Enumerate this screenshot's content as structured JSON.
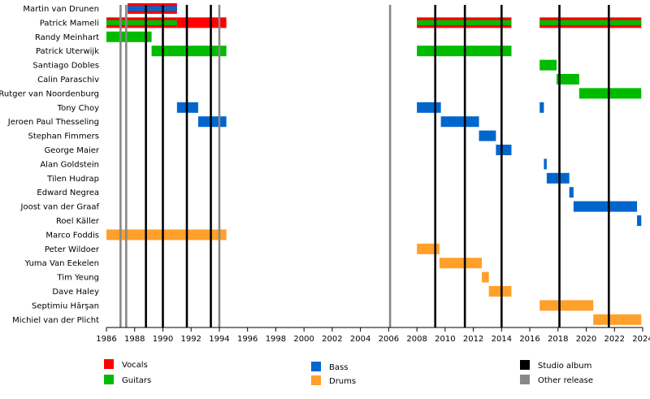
{
  "chart_data": {
    "type": "timeline",
    "title": "",
    "xlim": [
      1986,
      2024
    ],
    "x_ticks": [
      "1986",
      "1988",
      "1990",
      "1992",
      "1994",
      "1996",
      "1998",
      "2000",
      "2002",
      "2004",
      "2006",
      "2008",
      "2010",
      "2012",
      "2014",
      "2016",
      "2018",
      "2020",
      "2022",
      "2024"
    ],
    "grid": false,
    "legend_position": "bottom",
    "roles": [
      {
        "key": "vocals",
        "name": "Vocals",
        "color": "#ff0000"
      },
      {
        "key": "guitars",
        "name": "Guitars",
        "color": "#00bb00"
      },
      {
        "key": "bass",
        "name": "Bass",
        "color": "#0066cc"
      },
      {
        "key": "drums",
        "name": "Drums",
        "color": "#ffa02a"
      }
    ],
    "release_types": [
      {
        "key": "studio",
        "name": "Studio album",
        "color": "#000000"
      },
      {
        "key": "other",
        "name": "Other release",
        "color": "#888888"
      }
    ],
    "members": [
      {
        "name": "Martin van Drunen",
        "spans": [
          {
            "start": 1987.5,
            "end": 1991.0,
            "roles": [
              "vocals",
              "bass"
            ]
          }
        ]
      },
      {
        "name": "Patrick Mameli",
        "spans": [
          {
            "start": 1986.0,
            "end": 1991.0,
            "roles": [
              "vocals",
              "guitars"
            ]
          },
          {
            "start": 1991.0,
            "end": 1994.5,
            "roles": [
              "vocals"
            ]
          },
          {
            "start": 2008.0,
            "end": 2014.7,
            "roles": [
              "vocals",
              "guitars"
            ]
          },
          {
            "start": 2016.7,
            "end": 2023.9,
            "roles": [
              "vocals",
              "guitars"
            ]
          }
        ]
      },
      {
        "name": "Randy Meinhart",
        "spans": [
          {
            "start": 1986.0,
            "end": 1989.2,
            "roles": [
              "guitars"
            ]
          }
        ]
      },
      {
        "name": "Patrick Uterwijk",
        "spans": [
          {
            "start": 1989.2,
            "end": 1994.5,
            "roles": [
              "guitars"
            ]
          },
          {
            "start": 2008.0,
            "end": 2014.7,
            "roles": [
              "guitars"
            ]
          }
        ]
      },
      {
        "name": "Santiago Dobles",
        "spans": [
          {
            "start": 2016.7,
            "end": 2017.9,
            "roles": [
              "guitars"
            ]
          }
        ]
      },
      {
        "name": "Calin Paraschiv",
        "spans": [
          {
            "start": 2017.9,
            "end": 2019.5,
            "roles": [
              "guitars"
            ]
          }
        ]
      },
      {
        "name": "Rutger van Noordenburg",
        "spans": [
          {
            "start": 2019.5,
            "end": 2023.9,
            "roles": [
              "guitars"
            ]
          }
        ]
      },
      {
        "name": "Tony Choy",
        "spans": [
          {
            "start": 1991.0,
            "end": 1992.5,
            "roles": [
              "bass"
            ]
          },
          {
            "start": 2008.0,
            "end": 2009.7,
            "roles": [
              "bass"
            ]
          },
          {
            "start": 2016.7,
            "end": 2017.0,
            "roles": [
              "bass"
            ]
          }
        ]
      },
      {
        "name": "Jeroen Paul Thesseling",
        "spans": [
          {
            "start": 1992.5,
            "end": 1994.5,
            "roles": [
              "bass"
            ]
          },
          {
            "start": 2009.7,
            "end": 2012.4,
            "roles": [
              "bass"
            ]
          }
        ]
      },
      {
        "name": "Stephan Fimmers",
        "spans": [
          {
            "start": 2012.4,
            "end": 2013.6,
            "roles": [
              "bass"
            ]
          }
        ]
      },
      {
        "name": "George Maier",
        "spans": [
          {
            "start": 2013.6,
            "end": 2014.7,
            "roles": [
              "bass"
            ]
          }
        ]
      },
      {
        "name": "Alan Goldstein",
        "spans": [
          {
            "start": 2017.0,
            "end": 2017.2,
            "roles": [
              "bass"
            ]
          }
        ]
      },
      {
        "name": "Tilen Hudrap",
        "spans": [
          {
            "start": 2017.2,
            "end": 2018.8,
            "roles": [
              "bass"
            ]
          }
        ]
      },
      {
        "name": "Edward Negrea",
        "spans": [
          {
            "start": 2018.8,
            "end": 2019.1,
            "roles": [
              "bass"
            ]
          }
        ]
      },
      {
        "name": "Joost van der Graaf",
        "spans": [
          {
            "start": 2019.1,
            "end": 2023.6,
            "roles": [
              "bass"
            ]
          }
        ]
      },
      {
        "name": "Roel Käller",
        "spans": [
          {
            "start": 2023.6,
            "end": 2023.9,
            "roles": [
              "bass"
            ]
          }
        ]
      },
      {
        "name": "Marco Foddis",
        "spans": [
          {
            "start": 1986.0,
            "end": 1994.5,
            "roles": [
              "drums"
            ]
          }
        ]
      },
      {
        "name": "Peter Wildoer",
        "spans": [
          {
            "start": 2008.0,
            "end": 2009.6,
            "roles": [
              "drums"
            ]
          }
        ]
      },
      {
        "name": "Yuma Van Eekelen",
        "spans": [
          {
            "start": 2009.6,
            "end": 2012.6,
            "roles": [
              "drums"
            ]
          }
        ]
      },
      {
        "name": "Tim Yeung",
        "spans": [
          {
            "start": 2012.6,
            "end": 2013.1,
            "roles": [
              "drums"
            ]
          }
        ]
      },
      {
        "name": "Dave Haley",
        "spans": [
          {
            "start": 2013.1,
            "end": 2014.7,
            "roles": [
              "drums"
            ]
          }
        ]
      },
      {
        "name": "Septimiu Hărşan",
        "spans": [
          {
            "start": 2016.7,
            "end": 2020.5,
            "roles": [
              "drums"
            ]
          }
        ]
      },
      {
        "name": "Michiel van der Plicht",
        "spans": [
          {
            "start": 2020.5,
            "end": 2023.9,
            "roles": [
              "drums"
            ]
          }
        ]
      }
    ],
    "releases": [
      {
        "year": 1987.0,
        "type": "other"
      },
      {
        "year": 1987.4,
        "type": "other"
      },
      {
        "year": 1988.8,
        "type": "studio"
      },
      {
        "year": 1990.0,
        "type": "studio"
      },
      {
        "year": 1991.7,
        "type": "studio"
      },
      {
        "year": 1993.4,
        "type": "studio"
      },
      {
        "year": 1994.0,
        "type": "other"
      },
      {
        "year": 2006.1,
        "type": "other"
      },
      {
        "year": 2009.3,
        "type": "studio"
      },
      {
        "year": 2011.4,
        "type": "studio"
      },
      {
        "year": 2014.0,
        "type": "studio"
      },
      {
        "year": 2018.1,
        "type": "studio"
      },
      {
        "year": 2021.6,
        "type": "studio"
      }
    ]
  }
}
